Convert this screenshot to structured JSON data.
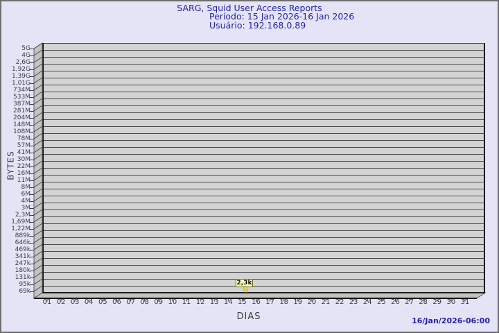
{
  "header": {
    "title": "SARG, Squid User Access Reports",
    "period_line": "Período: 15 Jan 2026-16 Jan 2026",
    "user_line": "Usuário: 192.168.0.89"
  },
  "footer": {
    "generated_timestamp": "16/Jan/2026-06:00"
  },
  "chart_data": {
    "type": "bar",
    "title": "SARG, Squid User Access Reports",
    "subtitle_period": "15 Jan 2026-16 Jan 2026",
    "user": "192.168.0.89",
    "xlabel": "DIAS",
    "ylabel": "BYTES",
    "x_tick_labels": [
      "01",
      "02",
      "03",
      "04",
      "05",
      "06",
      "07",
      "08",
      "09",
      "10",
      "11",
      "12",
      "13",
      "14",
      "15",
      "16",
      "17",
      "18",
      "19",
      "20",
      "21",
      "22",
      "23",
      "24",
      "25",
      "26",
      "27",
      "28",
      "29",
      "30",
      "31"
    ],
    "y_tick_labels": [
      "5G",
      "4G",
      "2,6G",
      "1,92G",
      "1,39G",
      "1,01G",
      "734M",
      "533M",
      "387M",
      "281M",
      "204M",
      "148M",
      "108M",
      "78M",
      "57M",
      "41M",
      "30M",
      "22M",
      "16M",
      "11M",
      "8M",
      "6M",
      "4M",
      "3M",
      "2,3M",
      "1,69M",
      "1,22M",
      "889k",
      "646k",
      "469k",
      "341k",
      "247k",
      "180k",
      "131k",
      "95k",
      "69k"
    ],
    "grid": true,
    "legend": "none",
    "points": [
      {
        "day": "15",
        "value_label": "2,3k",
        "value_bytes": 2300
      }
    ]
  },
  "colors": {
    "background": "#e4e4f6",
    "frame_border": "#6e6e6e",
    "title_text": "#2424a4",
    "timestamp_text": "#2424a4",
    "plot_fill": "#d3d3d3",
    "wall_fill": "#c3c3c3",
    "gridline": "#4a4a4a",
    "axis_text": "#3d3d3d",
    "flag_fill": "#ffffb8",
    "flag_border": "#6a6a22",
    "flag_stem": "#e8cc5e"
  }
}
